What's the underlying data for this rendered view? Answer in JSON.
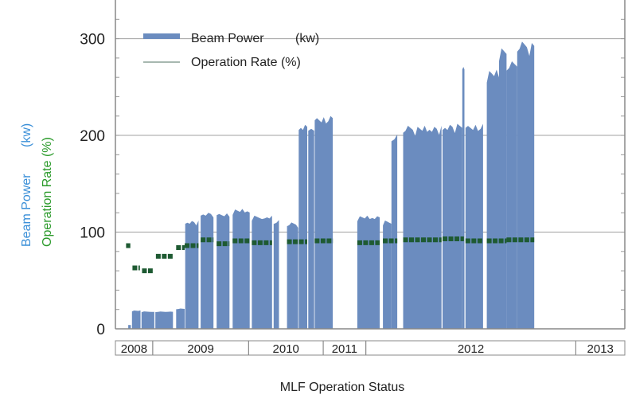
{
  "chart_data": {
    "type": "bar",
    "title": "MLF Operation Status",
    "ylabel_power": "Beam Power",
    "ylabel_power_unit": "(kw)",
    "ylabel_rate": "Operation Rate (%)",
    "ylim": [
      0,
      340
    ],
    "yticks": [
      0,
      100,
      200,
      300
    ],
    "grid": true,
    "legend": {
      "placement": "top-left",
      "power_label": "Beam Power",
      "power_unit": "(kw)",
      "rate_label": "Operation Rate (%)"
    },
    "x_time_range": [
      2008.6,
      2013.38
    ],
    "years": [
      {
        "label": "2008",
        "start": 2008.6,
        "end": 2008.95
      },
      {
        "label": "2009",
        "start": 2008.95,
        "end": 2009.85
      },
      {
        "label": "2010",
        "start": 2009.85,
        "end": 2010.55
      },
      {
        "label": "2011",
        "start": 2010.55,
        "end": 2010.95
      },
      {
        "label": "2012",
        "start": 2010.95,
        "end": 2012.92
      },
      {
        "label": "2013",
        "start": 2012.92,
        "end": 2013.38
      }
    ],
    "series": [
      {
        "name": "Beam Power",
        "unit": "kw",
        "color": "#6b8cbf",
        "blocks": [
          {
            "start": 2008.72,
            "end": 2008.745,
            "value": 4
          },
          {
            "start": 2008.755,
            "end": 2008.835,
            "value": 19
          },
          {
            "start": 2008.845,
            "end": 2008.965,
            "value": 18
          },
          {
            "start": 2008.975,
            "end": 2009.14,
            "value": 18
          },
          {
            "start": 2009.17,
            "end": 2009.25,
            "value": 21
          },
          {
            "start": 2009.255,
            "end": 2009.38,
            "value": 112
          },
          {
            "start": 2009.4,
            "end": 2009.52,
            "value": 120
          },
          {
            "start": 2009.55,
            "end": 2009.67,
            "value": 120
          },
          {
            "start": 2009.7,
            "end": 2009.86,
            "value": 124
          },
          {
            "start": 2009.88,
            "end": 2010.07,
            "value": 117
          },
          {
            "start": 2010.085,
            "end": 2010.135,
            "value": 113
          },
          {
            "start": 2010.21,
            "end": 2010.315,
            "value": 110
          },
          {
            "start": 2010.32,
            "end": 2010.4,
            "value": 212
          },
          {
            "start": 2010.41,
            "end": 2010.465,
            "value": 210
          },
          {
            "start": 2010.47,
            "end": 2010.64,
            "value": 220
          },
          {
            "start": 2010.87,
            "end": 2011.08,
            "value": 117
          },
          {
            "start": 2011.11,
            "end": 2011.19,
            "value": 112
          },
          {
            "start": 2011.19,
            "end": 2011.245,
            "value": 202
          },
          {
            "start": 2011.3,
            "end": 2011.66,
            "value": 210
          },
          {
            "start": 2011.67,
            "end": 2011.855,
            "value": 212
          },
          {
            "start": 2011.855,
            "end": 2011.875,
            "value": 275
          },
          {
            "start": 2011.885,
            "end": 2012.05,
            "value": 212
          },
          {
            "start": 2012.085,
            "end": 2012.2,
            "value": 268
          },
          {
            "start": 2012.2,
            "end": 2012.27,
            "value": 290
          },
          {
            "start": 2012.27,
            "end": 2012.37,
            "value": 278
          },
          {
            "start": 2012.37,
            "end": 2012.53,
            "value": 297
          }
        ]
      },
      {
        "name": "Operation Rate",
        "unit": "%",
        "color": "#1e5a32",
        "segments": [
          {
            "start": 2008.7,
            "end": 2008.74,
            "value": 86
          },
          {
            "start": 2008.76,
            "end": 2008.83,
            "value": 63
          },
          {
            "start": 2008.85,
            "end": 2008.95,
            "value": 60
          },
          {
            "start": 2008.98,
            "end": 2009.14,
            "value": 75
          },
          {
            "start": 2009.17,
            "end": 2009.25,
            "value": 84
          },
          {
            "start": 2009.25,
            "end": 2009.38,
            "value": 86
          },
          {
            "start": 2009.4,
            "end": 2009.52,
            "value": 92
          },
          {
            "start": 2009.55,
            "end": 2009.67,
            "value": 88
          },
          {
            "start": 2009.7,
            "end": 2009.86,
            "value": 91
          },
          {
            "start": 2009.88,
            "end": 2010.07,
            "value": 89
          },
          {
            "start": 2010.21,
            "end": 2010.4,
            "value": 90
          },
          {
            "start": 2010.47,
            "end": 2010.64,
            "value": 91
          },
          {
            "start": 2010.87,
            "end": 2011.08,
            "value": 89
          },
          {
            "start": 2011.11,
            "end": 2011.245,
            "value": 91
          },
          {
            "start": 2011.3,
            "end": 2011.66,
            "value": 92
          },
          {
            "start": 2011.67,
            "end": 2011.87,
            "value": 93
          },
          {
            "start": 2011.885,
            "end": 2012.05,
            "value": 91
          },
          {
            "start": 2012.085,
            "end": 2012.27,
            "value": 91
          },
          {
            "start": 2012.27,
            "end": 2012.53,
            "value": 92
          }
        ]
      }
    ]
  },
  "colors": {
    "power_axis_label": "#3a8fd8",
    "rate_axis_label": "#2a9a2a",
    "grid": "#a0a0a0",
    "axis": "#888888"
  }
}
